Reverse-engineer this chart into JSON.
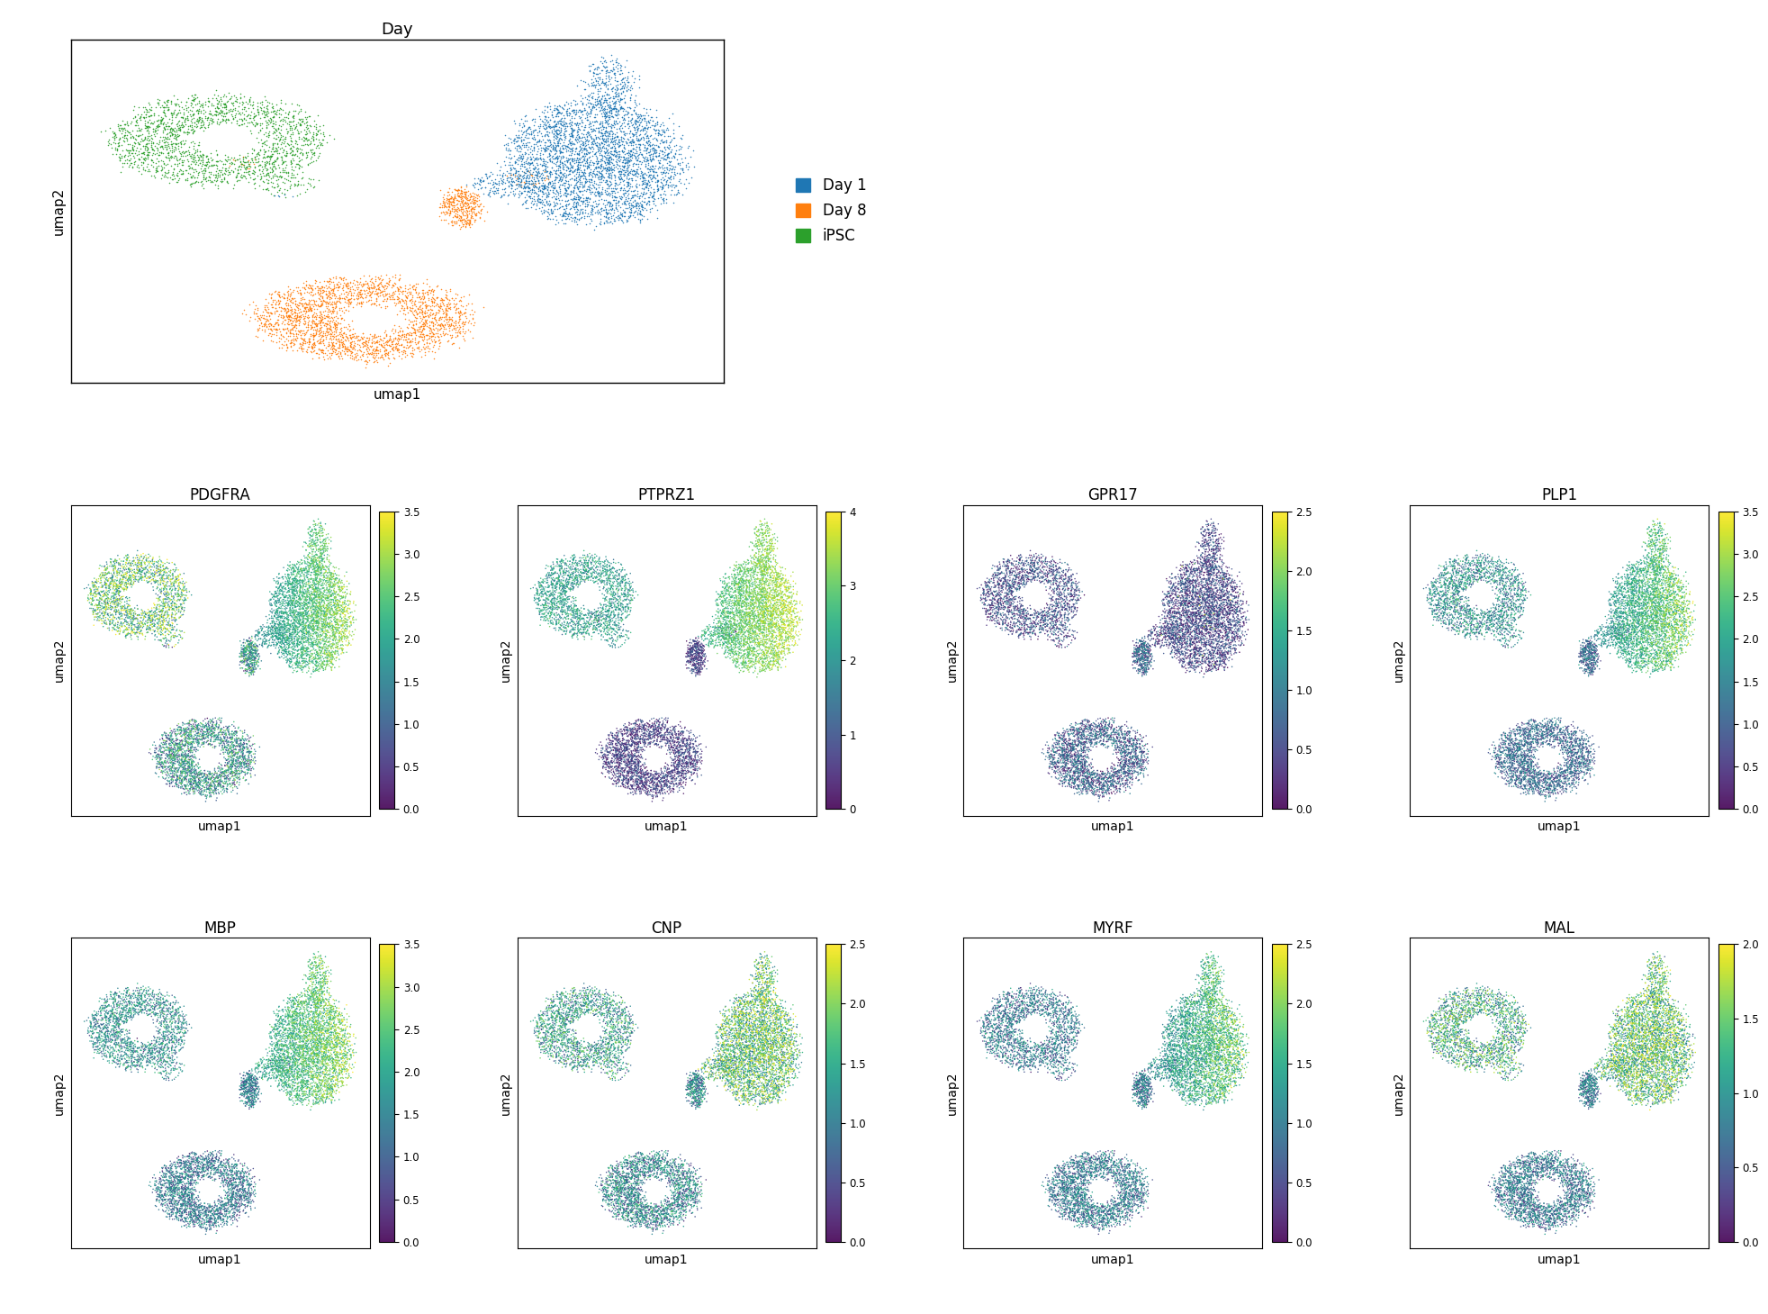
{
  "title_day": "Day",
  "legend_labels": [
    "Day 1",
    "Day 8",
    "iPSC"
  ],
  "legend_colors": [
    "#1f77b4",
    "#ff7f0e",
    "#2ca02c"
  ],
  "gene_titles": [
    "PDGFRA",
    "PTPRZ1",
    "GPR17",
    "PLP1",
    "MBP",
    "CNP",
    "MYRF",
    "MAL"
  ],
  "gene_vmaxes": [
    3.5,
    4.0,
    2.5,
    3.5,
    3.5,
    2.5,
    2.5,
    2.0
  ],
  "gene_vmins": [
    0.0,
    0.0,
    0.0,
    0.0,
    0.0,
    0.0,
    0.0,
    0.0
  ],
  "xlabel": "umap1",
  "ylabel": "umap2",
  "n_cells": 9000,
  "random_seed": 42,
  "figsize": [
    19.65,
    14.59
  ],
  "dpi": 100,
  "background_color": "#ffffff",
  "point_size": 1.2,
  "colorbar_ticks": {
    "3.5": [
      0.0,
      0.5,
      1.0,
      1.5,
      2.0,
      2.5,
      3.0,
      3.5
    ],
    "4.0": [
      0,
      1,
      2,
      3,
      4
    ],
    "2.5": [
      0.0,
      0.5,
      1.0,
      1.5,
      2.0,
      2.5
    ],
    "2.0": [
      0.0,
      0.5,
      1.0,
      1.5,
      2.0
    ]
  }
}
